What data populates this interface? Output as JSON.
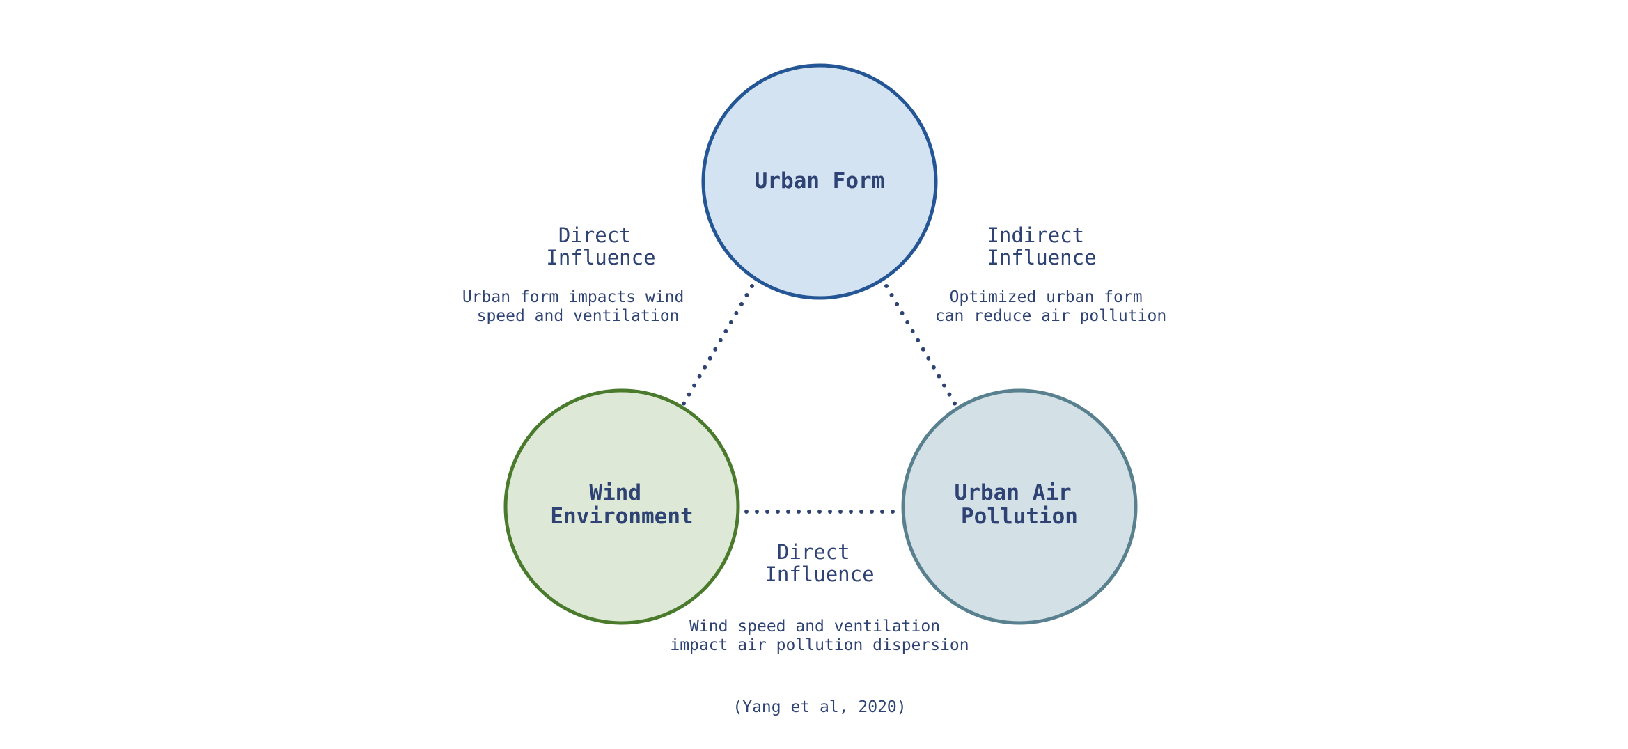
{
  "colors": {
    "text": "#2e4373",
    "dots": "#2e4373",
    "urban_form": {
      "fill": "#d3e3f2",
      "stroke": "#245594"
    },
    "wind_environment": {
      "fill": "#dde9d6",
      "stroke": "#4a7a2c"
    },
    "urban_air_pollution": {
      "fill": "#d3e0e6",
      "stroke": "#58808f"
    }
  },
  "nodes": {
    "urban_form": {
      "lines": [
        "Urban Form"
      ]
    },
    "wind_environment": {
      "lines": [
        "Wind",
        "Environment"
      ]
    },
    "urban_air_pollution": {
      "lines": [
        "Urban Air",
        "Pollution"
      ]
    }
  },
  "edges": {
    "form_wind": {
      "title": [
        "Direct",
        "Influence"
      ],
      "description": [
        "Urban form impacts wind",
        "speed and ventilation"
      ]
    },
    "form_pollution": {
      "title": [
        "Indirect",
        "Influence"
      ],
      "description": [
        "Optimized urban form",
        "can reduce air pollution"
      ]
    },
    "wind_pollution": {
      "title": [
        "Direct",
        "Influence"
      ],
      "description": [
        "Wind speed and ventilation",
        "impact air pollution dispersion"
      ]
    }
  },
  "citation": "(Yang et al, 2020)"
}
